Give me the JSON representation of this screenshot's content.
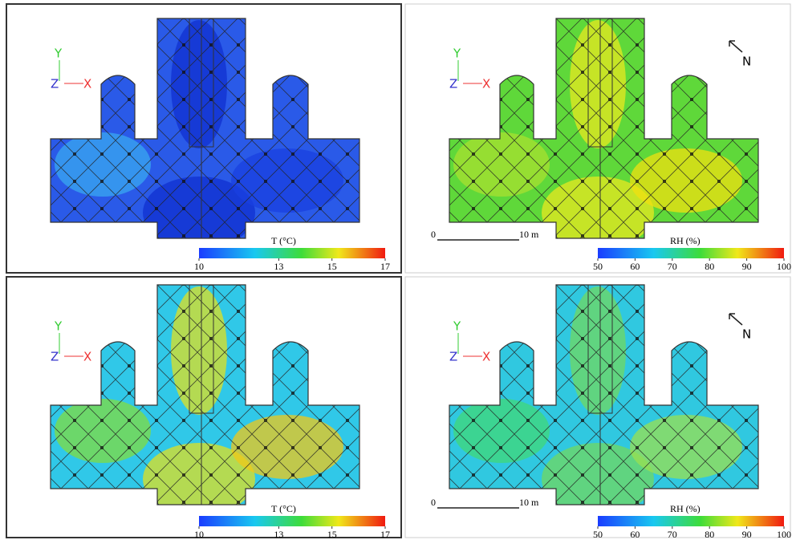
{
  "panels": [
    {
      "colorbar": {
        "title": "T (°C)",
        "ticks": [
          10,
          13,
          15,
          17
        ]
      },
      "axes": {
        "y": "Y",
        "z": "Z",
        "x": "X"
      }
    },
    {
      "colorbar": {
        "title": "RH (%)",
        "ticks": [
          50,
          60,
          70,
          80,
          90,
          100
        ]
      },
      "axes": {
        "y": "Y",
        "z": "Z",
        "x": "X"
      },
      "north": "N",
      "scale": {
        "start": "0",
        "end": "10 m"
      }
    },
    {
      "colorbar": {
        "title": "T (°C)",
        "ticks": [
          10,
          13,
          15,
          17
        ]
      },
      "axes": {
        "y": "Y",
        "z": "Z",
        "x": "X"
      }
    },
    {
      "colorbar": {
        "title": "RH (%)",
        "ticks": [
          50,
          60,
          70,
          80,
          90,
          100
        ]
      },
      "axes": {
        "y": "Y",
        "z": "Z",
        "x": "X"
      },
      "north": "N",
      "scale": {
        "start": "0",
        "end": "10 m"
      }
    }
  ]
}
